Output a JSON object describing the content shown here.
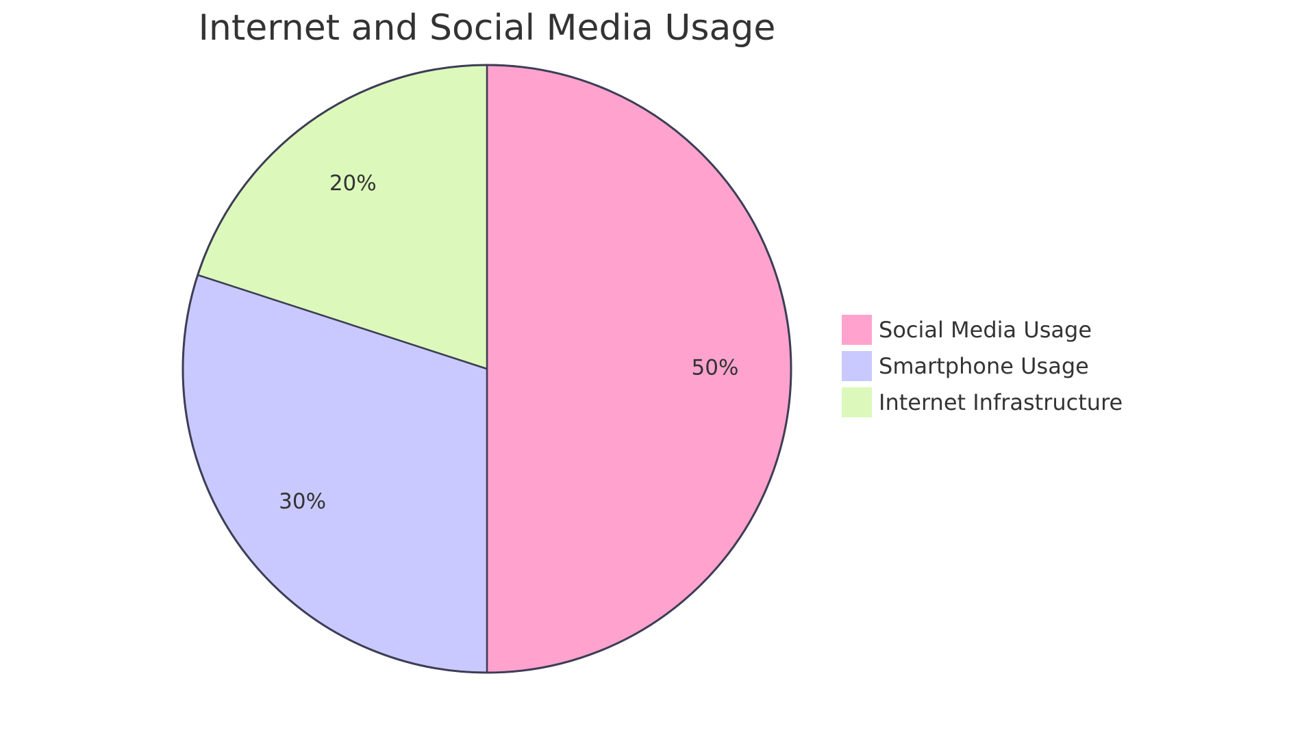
{
  "chart_data": {
    "type": "pie",
    "title": "Internet and Social Media Usage",
    "categories": [
      "Social Media Usage",
      "Smartphone Usage",
      "Internet Infrastructure"
    ],
    "values": [
      50,
      30,
      20
    ],
    "labels": [
      "50%",
      "30%",
      "20%"
    ],
    "colors": [
      "#FFA3CE",
      "#C9C9FF",
      "#DCF9BB"
    ],
    "stroke_color": "#3D3D55",
    "start_angle": "top",
    "direction": "clockwise",
    "legend_position": "right"
  }
}
